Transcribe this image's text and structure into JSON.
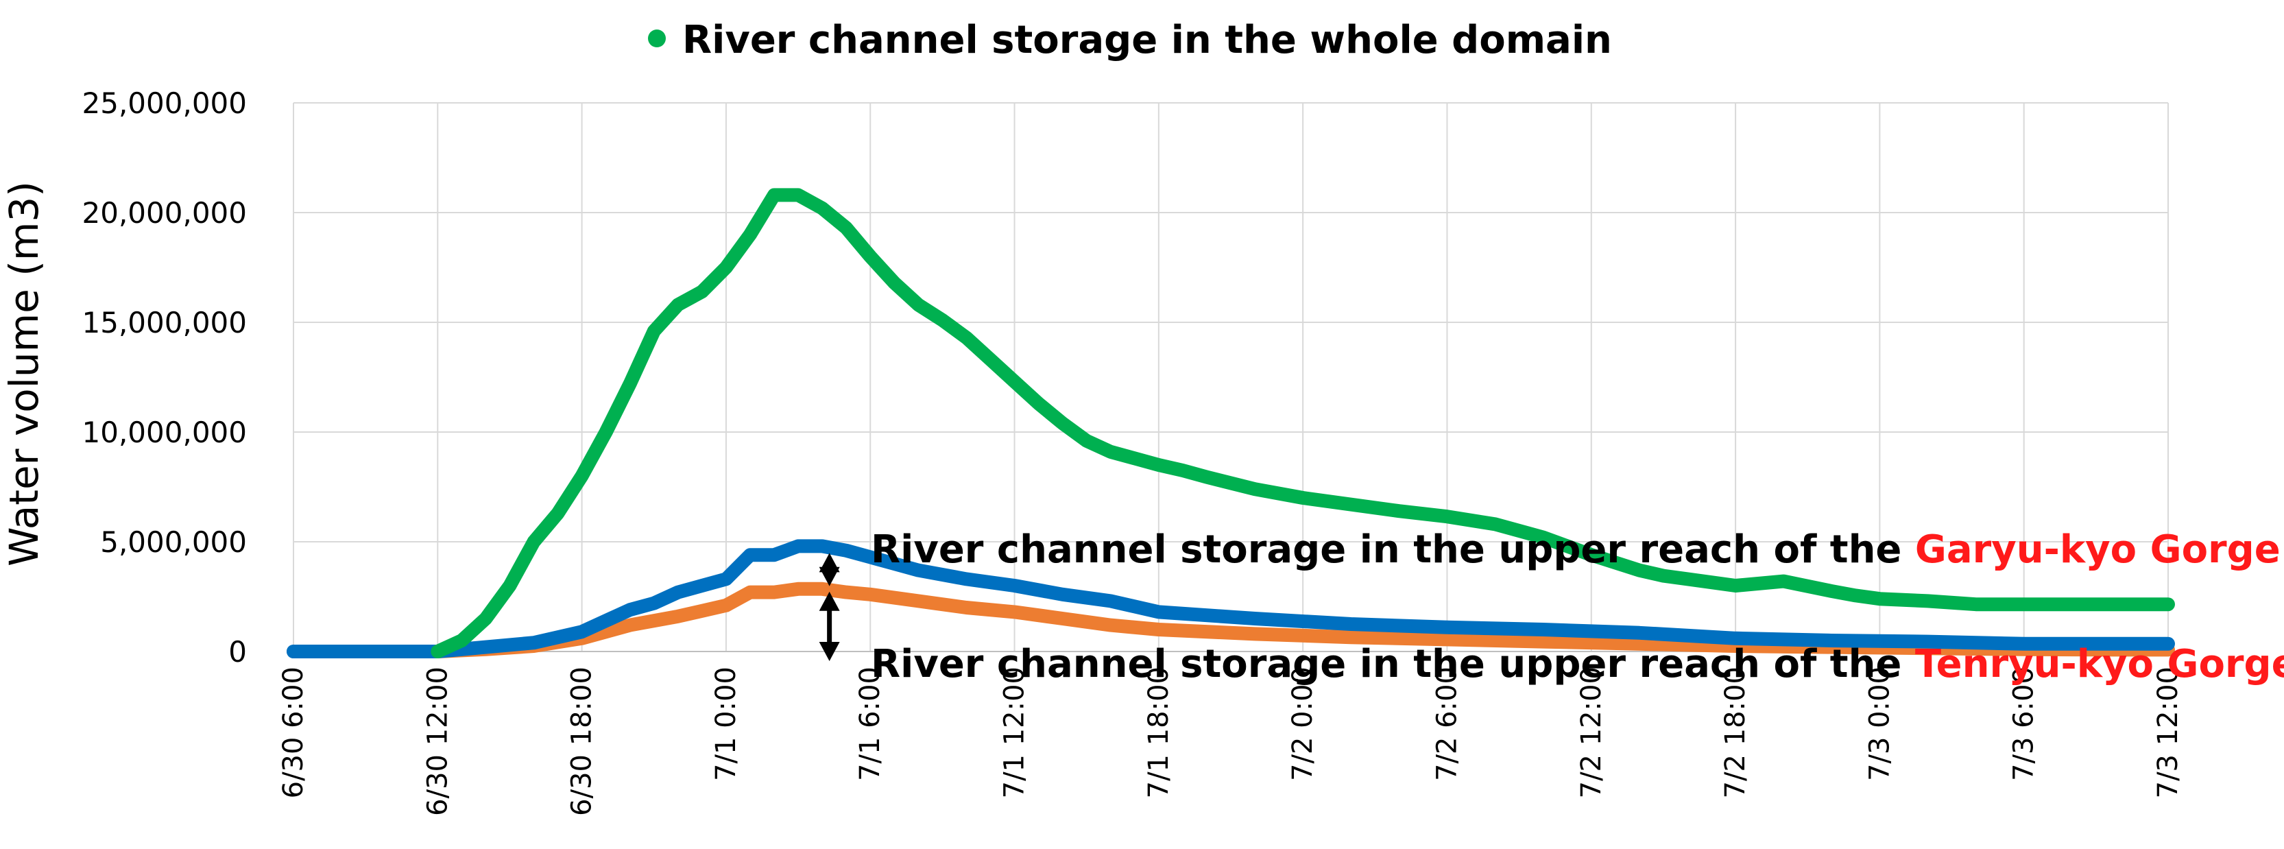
{
  "chart_data": {
    "type": "line",
    "title": "",
    "xlabel": "",
    "ylabel": "Water volume (m3)",
    "ylim": [
      0,
      25000000
    ],
    "yticks": [
      0,
      5000000,
      10000000,
      15000000,
      20000000,
      25000000
    ],
    "ytick_labels": [
      "0",
      "5,000,000",
      "10,000,000",
      "15,000,000",
      "20,000,000",
      "25,000,000"
    ],
    "x_unit": "hours from 6/30 6:00",
    "xlim": [
      0,
      78
    ],
    "xticks": [
      0,
      6,
      12,
      18,
      24,
      30,
      36,
      42,
      48,
      54,
      60,
      66,
      72,
      78
    ],
    "xtick_labels": [
      "6/30 6:00",
      "6/30 12:00",
      "6/30 18:00",
      "7/1 0:00",
      "7/1 6:00",
      "7/1 12:00",
      "7/1 18:00",
      "7/2 0:00",
      "7/2 6:00",
      "7/2 12:00",
      "7/2 18:00",
      "7/3 0:00",
      "7/3 6:00",
      "7/3 12:00"
    ],
    "grid": true,
    "legend": {
      "position": "top-center",
      "entries": [
        "River channel storage in the whole domain"
      ]
    },
    "series": [
      {
        "name": "River channel storage in the whole domain",
        "color": "#00b050",
        "x": [
          6,
          7,
          8,
          9,
          10,
          11,
          12,
          13,
          14,
          15,
          16,
          17,
          18,
          19,
          20,
          21,
          22,
          23,
          24,
          25,
          26,
          27,
          28,
          29,
          30,
          31,
          32,
          33,
          34,
          35,
          36,
          37,
          38,
          40,
          42,
          44,
          46,
          48,
          50,
          52,
          54,
          56,
          57,
          58,
          60,
          62,
          64,
          65,
          66,
          68,
          70,
          72,
          74,
          76,
          78
        ],
        "values": [
          0,
          500000,
          1500000,
          3000000,
          5000000,
          6300000,
          8000000,
          10000000,
          12200000,
          14600000,
          15800000,
          16400000,
          17500000,
          19000000,
          20800000,
          20800000,
          20200000,
          19300000,
          18000000,
          16800000,
          15800000,
          15100000,
          14300000,
          13300000,
          12300000,
          11300000,
          10400000,
          9600000,
          9100000,
          8800000,
          8500000,
          8250000,
          7950000,
          7400000,
          7000000,
          6700000,
          6400000,
          6150000,
          5800000,
          5200000,
          4400000,
          3700000,
          3450000,
          3300000,
          3000000,
          3200000,
          2750000,
          2550000,
          2400000,
          2300000,
          2150000,
          2150000,
          2150000,
          2150000,
          2150000
        ]
      },
      {
        "name": "",
        "color": "#0070c0",
        "x": [
          0,
          6,
          8,
          10,
          12,
          14,
          15,
          16,
          18,
          19,
          20,
          21,
          22,
          23,
          24,
          25,
          26,
          28,
          30,
          32,
          34,
          36,
          40,
          44,
          48,
          52,
          56,
          60,
          64,
          68,
          72,
          76,
          78
        ],
        "values": [
          0,
          0,
          200000,
          400000,
          900000,
          1900000,
          2200000,
          2700000,
          3300000,
          4400000,
          4400000,
          4800000,
          4800000,
          4600000,
          4300000,
          4000000,
          3700000,
          3300000,
          3000000,
          2600000,
          2300000,
          1800000,
          1500000,
          1250000,
          1100000,
          1000000,
          850000,
          600000,
          500000,
          450000,
          350000,
          350000,
          350000
        ]
      },
      {
        "name": "",
        "color": "#ed7d31",
        "x": [
          6,
          8,
          10,
          12,
          14,
          16,
          18,
          19,
          20,
          21,
          22,
          23,
          24,
          26,
          28,
          30,
          32,
          34,
          36,
          40,
          44,
          48,
          52,
          56,
          60,
          64,
          68,
          72,
          76,
          78
        ],
        "values": [
          0,
          100000,
          250000,
          600000,
          1200000,
          1600000,
          2100000,
          2700000,
          2700000,
          2850000,
          2850000,
          2700000,
          2600000,
          2300000,
          2000000,
          1800000,
          1500000,
          1200000,
          1000000,
          800000,
          650000,
          550000,
          450000,
          350000,
          250000,
          200000,
          150000,
          100000,
          80000,
          80000
        ]
      }
    ],
    "annotations": [
      {
        "prefix": "River channel storage in the upper reach of the ",
        "highlight": "Garyu-kyo Gorge"
      },
      {
        "prefix": "River channel storage in the upper reach of the ",
        "highlight": "Tenryu-kyo Gorge"
      }
    ],
    "annotation_highlight_color": "#ff1a1a"
  }
}
